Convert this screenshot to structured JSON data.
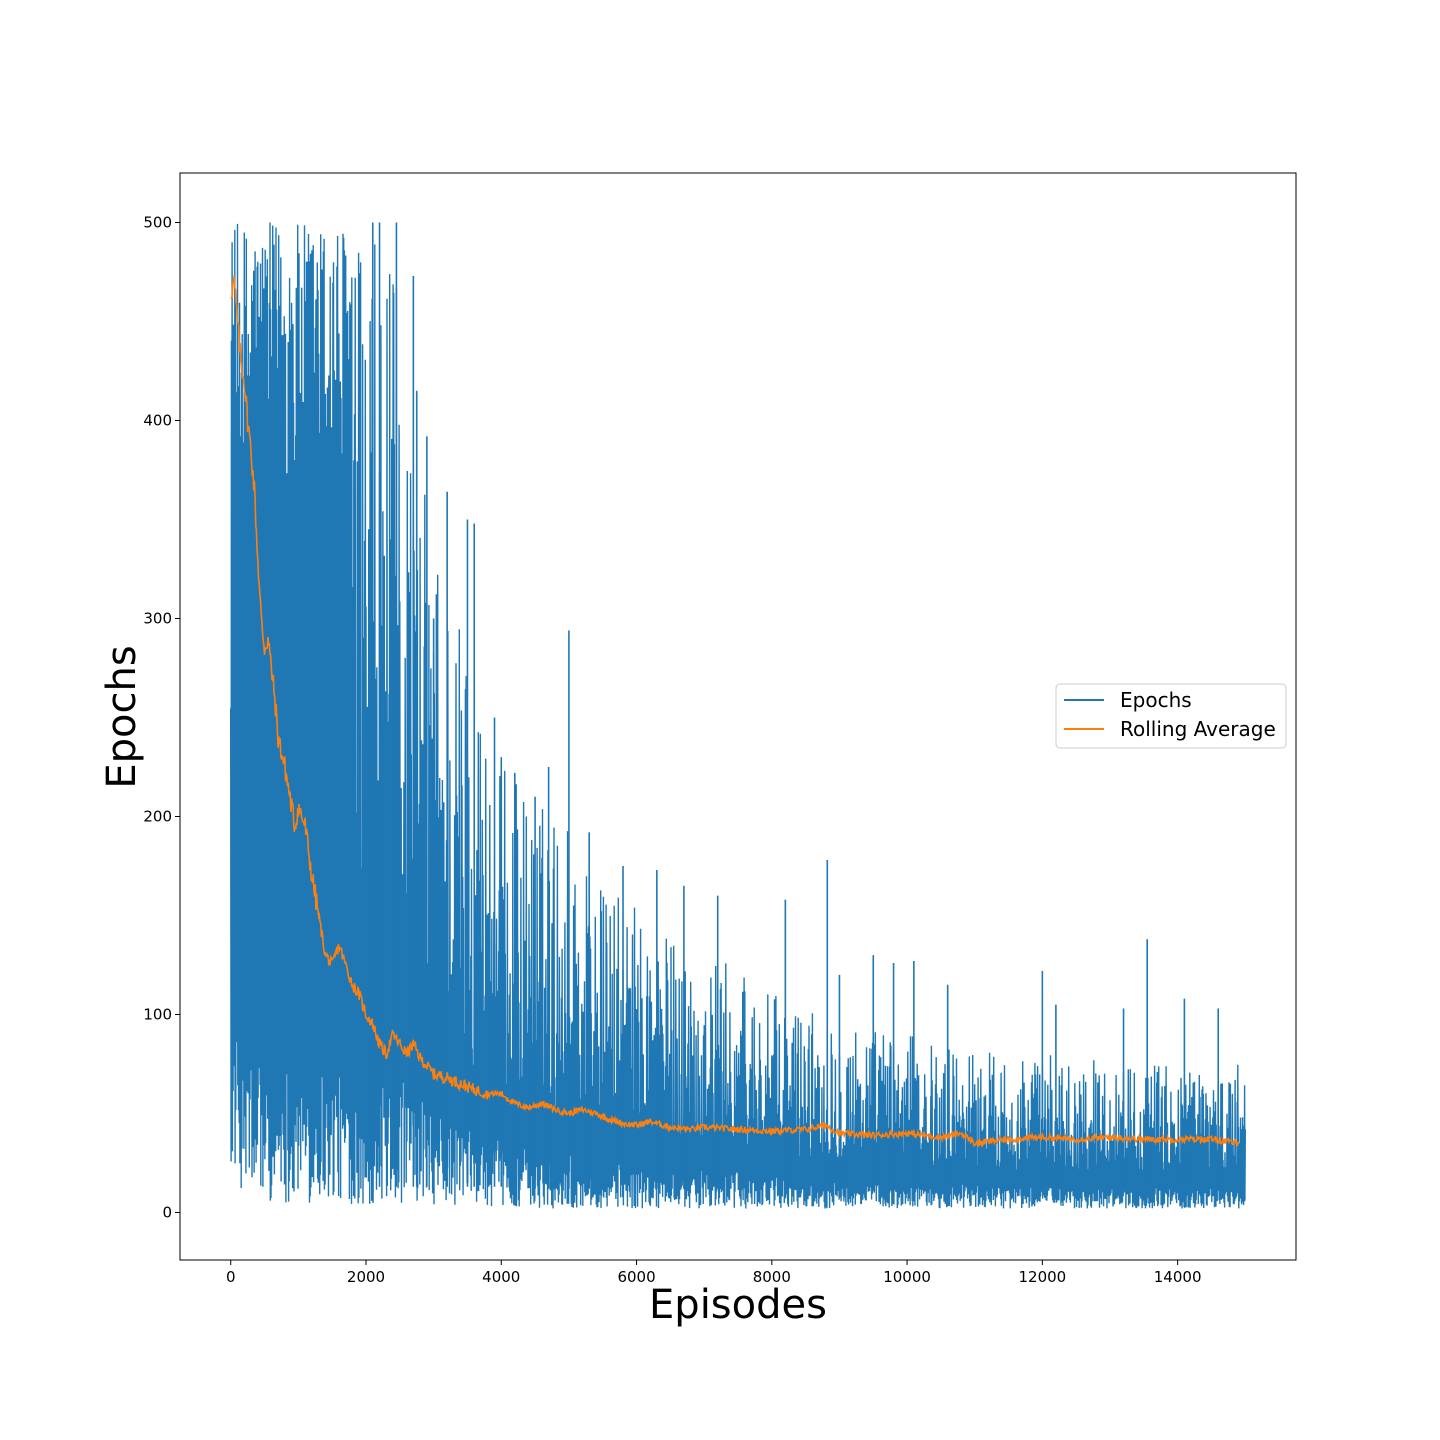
{
  "chart_data": {
    "type": "line",
    "xlabel": "Episodes",
    "ylabel": "Epochs",
    "xlim": [
      -750,
      15750
    ],
    "ylim": [
      -24,
      525
    ],
    "xticks": [
      0,
      2000,
      4000,
      6000,
      8000,
      10000,
      12000,
      14000
    ],
    "yticks": [
      0,
      100,
      200,
      300,
      400,
      500
    ],
    "grid": false,
    "legend": {
      "placement": "center-right"
    },
    "series": [
      {
        "name": "Epochs",
        "color": "#1f77b4",
        "note_style": "raw per-episode values, densely oscillating",
        "envelope": {
          "x": [
            0,
            200,
            500,
            800,
            1000,
            1300,
            1500,
            1800,
            2000,
            2300,
            2500,
            2800,
            3000,
            3500,
            4000,
            4500,
            5000,
            5500,
            6000,
            6500,
            7000,
            7500,
            8000,
            8500,
            9000,
            9500,
            10000,
            10500,
            11000,
            11500,
            12000,
            12500,
            13000,
            13500,
            14000,
            14500,
            15000
          ],
          "upper": [
            500,
            500,
            500,
            500,
            500,
            500,
            500,
            500,
            500,
            480,
            470,
            380,
            350,
            300,
            230,
            210,
            200,
            165,
            155,
            140,
            130,
            125,
            110,
            105,
            100,
            95,
            90,
            85,
            85,
            80,
            80,
            78,
            78,
            76,
            76,
            75,
            75
          ],
          "lower": [
            25,
            8,
            6,
            5,
            5,
            4,
            4,
            4,
            3,
            3,
            3,
            3,
            3,
            3,
            3,
            2,
            2,
            2,
            2,
            2,
            2,
            2,
            2,
            2,
            2,
            2,
            2,
            2,
            2,
            2,
            2,
            2,
            2,
            2,
            2,
            2,
            2
          ]
        },
        "spikes": [
          [
            2100,
            500
          ],
          [
            2200,
            500
          ],
          [
            2450,
            500
          ],
          [
            2700,
            473
          ],
          [
            2750,
            415
          ],
          [
            2900,
            392
          ],
          [
            3000,
            300
          ],
          [
            3200,
            364
          ],
          [
            3500,
            350
          ],
          [
            3600,
            348
          ],
          [
            3900,
            250
          ],
          [
            4000,
            230
          ],
          [
            4200,
            222
          ],
          [
            4500,
            210
          ],
          [
            4700,
            225
          ],
          [
            5000,
            294
          ],
          [
            5300,
            192
          ],
          [
            5800,
            175
          ],
          [
            6300,
            173
          ],
          [
            6700,
            165
          ],
          [
            7200,
            160
          ],
          [
            8200,
            158
          ],
          [
            8820,
            178
          ],
          [
            9000,
            120
          ],
          [
            9500,
            130
          ],
          [
            9800,
            126
          ],
          [
            10100,
            127
          ],
          [
            10600,
            115
          ],
          [
            12000,
            122
          ],
          [
            12200,
            105
          ],
          [
            13200,
            103
          ],
          [
            13550,
            138
          ],
          [
            14100,
            108
          ],
          [
            14600,
            103
          ]
        ]
      },
      {
        "name": "Rolling Average",
        "color": "#ff7f0e",
        "x": [
          0,
          50,
          100,
          150,
          200,
          250,
          300,
          350,
          400,
          450,
          500,
          550,
          600,
          650,
          700,
          800,
          900,
          950,
          1000,
          1100,
          1200,
          1300,
          1400,
          1500,
          1600,
          1700,
          1800,
          1900,
          2000,
          2100,
          2200,
          2300,
          2400,
          2500,
          2600,
          2700,
          2800,
          3000,
          3200,
          3400,
          3600,
          3800,
          4000,
          4200,
          4400,
          4600,
          4800,
          5000,
          5200,
          5400,
          5600,
          5800,
          6000,
          6200,
          6500,
          6800,
          7000,
          7500,
          8000,
          8500,
          8800,
          9000,
          9500,
          10000,
          10500,
          10800,
          11000,
          11500,
          12000,
          12500,
          13000,
          13500,
          14000,
          14500,
          14900
        ],
        "y": [
          465,
          470,
          450,
          430,
          420,
          400,
          385,
          365,
          330,
          300,
          285,
          290,
          275,
          260,
          240,
          225,
          205,
          195,
          205,
          195,
          170,
          150,
          130,
          125,
          135,
          125,
          115,
          110,
          100,
          95,
          85,
          80,
          90,
          85,
          80,
          85,
          78,
          70,
          68,
          65,
          62,
          60,
          60,
          55,
          53,
          55,
          52,
          50,
          52,
          50,
          47,
          45,
          44,
          46,
          43,
          42,
          43,
          42,
          41,
          42,
          44,
          40,
          39,
          40,
          38,
          40,
          35,
          37,
          38,
          37,
          38,
          37,
          37,
          37,
          35
        ]
      }
    ]
  }
}
